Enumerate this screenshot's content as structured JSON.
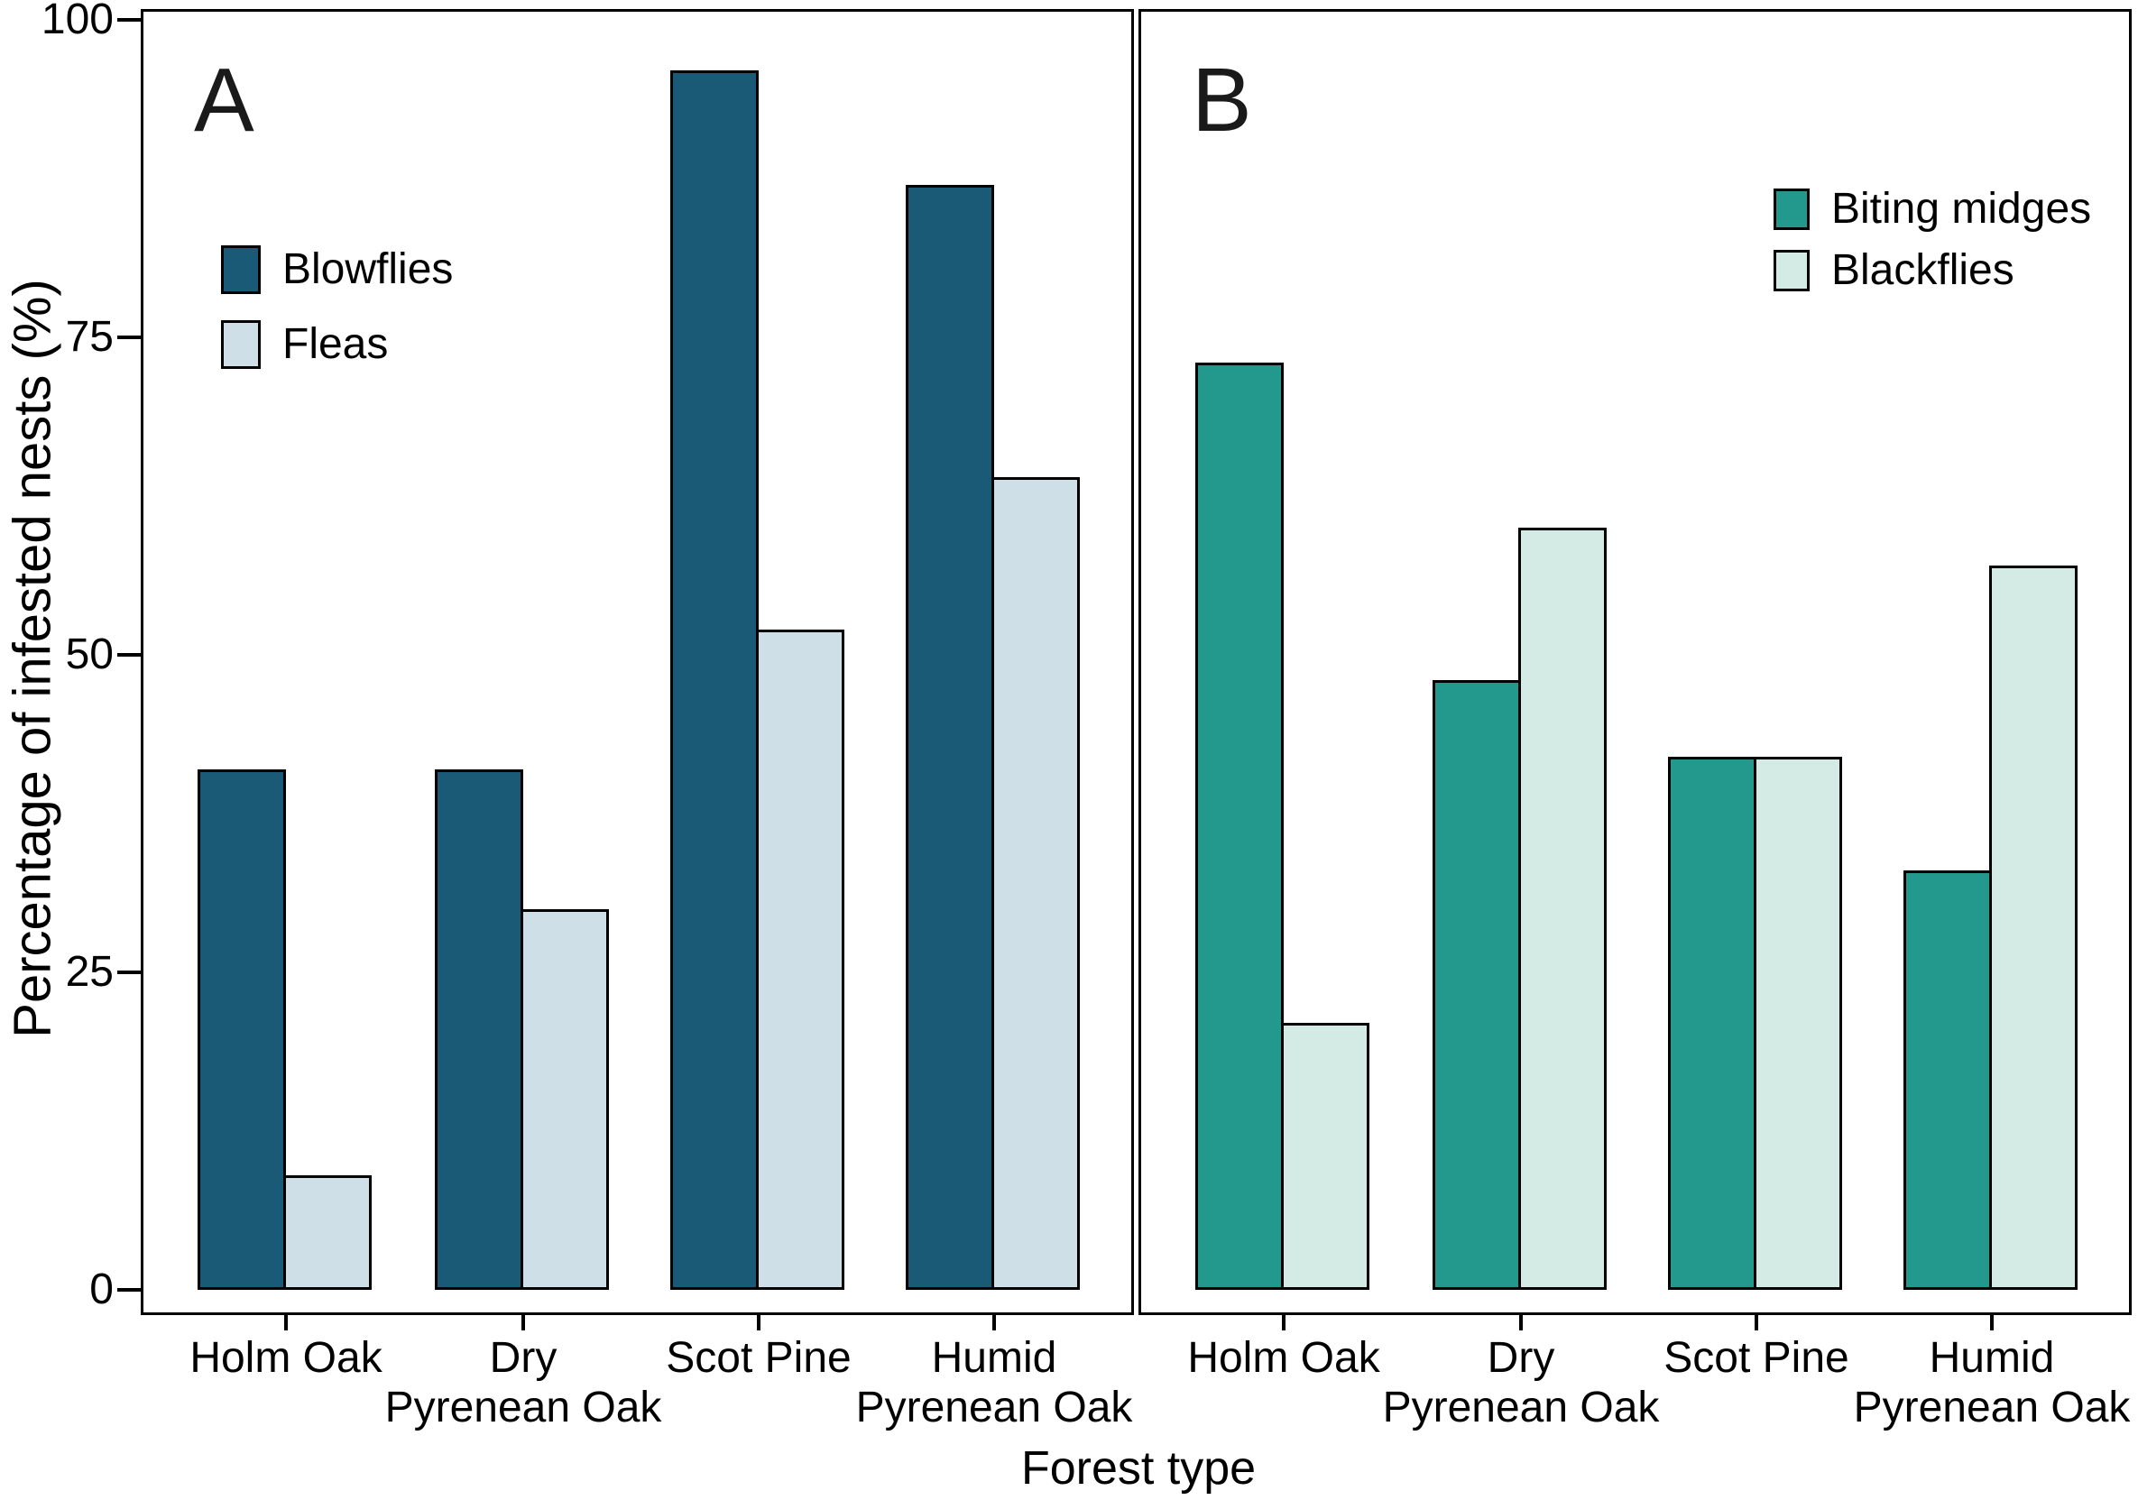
{
  "chart_data": {
    "type": "bar",
    "title": "",
    "xlabel": "Forest type",
    "ylabel": "Percentage of infested nests (%)",
    "ylim": [
      0,
      100
    ],
    "y_ticks": [
      0,
      25,
      50,
      75,
      100
    ],
    "grid": false,
    "background": "#ffffff",
    "categories": [
      "Holm Oak",
      "Dry Pyrenean Oak",
      "Scot Pine",
      "Humid Pyrenean Oak"
    ],
    "category_label_lines": [
      [
        "Holm Oak",
        ""
      ],
      [
        "Dry",
        "Pyrenean Oak"
      ],
      [
        "Scot Pine",
        ""
      ],
      [
        "Humid",
        "Pyrenean Oak"
      ]
    ],
    "panels": [
      {
        "label": "A",
        "legend_position": "upper-left",
        "series": [
          {
            "name": "Blowflies",
            "color": "#1b5a77",
            "values": [
              41,
              41,
              96,
              87
            ]
          },
          {
            "name": "Fleas",
            "color": "#cfdfe8",
            "values": [
              9,
              30,
              52,
              64
            ]
          }
        ]
      },
      {
        "label": "B",
        "legend_position": "upper-right",
        "series": [
          {
            "name": "Biting midges",
            "color": "#22998c",
            "values": [
              73,
              48,
              42,
              33
            ]
          },
          {
            "name": "Blackflies",
            "color": "#d3eae5",
            "values": [
              21,
              60,
              42,
              57
            ]
          }
        ]
      }
    ]
  }
}
